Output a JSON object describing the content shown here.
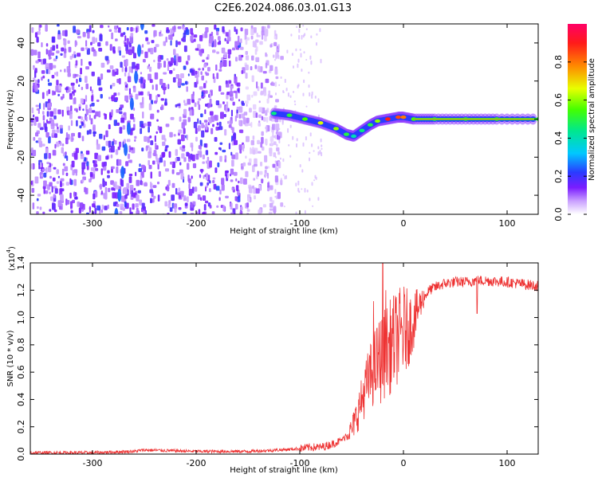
{
  "page_title": "C2E6.2024.086.03.01.G13",
  "chart_data": [
    {
      "type": "heatmap",
      "name": "spectrogram",
      "xlabel": "Height of straight line (km)",
      "ylabel": "Frequency (Hz)",
      "xlim": [
        -360,
        130
      ],
      "ylim": [
        -50,
        50
      ],
      "xticks": [
        -300,
        -200,
        -100,
        0,
        100
      ],
      "yticks": [
        -40,
        -20,
        0,
        20,
        40
      ],
      "grid": false,
      "colorbar": {
        "label": "Normalized spectral amplitude",
        "range": [
          0,
          1
        ],
        "ticks": [
          0.0,
          0.2,
          0.4,
          0.6,
          0.8
        ]
      },
      "signal_track": {
        "x": [
          -125,
          -110,
          -95,
          -80,
          -65,
          -55,
          -48,
          -40,
          -32,
          -25,
          -15,
          -5,
          0,
          10,
          30,
          60,
          90,
          130
        ],
        "frequency": [
          3,
          2,
          0,
          -2,
          -5,
          -8,
          -9,
          -6,
          -3,
          -1,
          0,
          1,
          1,
          0,
          0,
          0,
          0,
          0
        ],
        "amplitude": [
          0.45,
          0.5,
          0.55,
          0.65,
          0.6,
          0.5,
          0.4,
          0.45,
          0.5,
          0.6,
          0.9,
          0.85,
          0.8,
          0.55,
          0.5,
          0.5,
          0.55,
          0.5
        ]
      },
      "dispersed_track": {
        "x": [
          -277,
          -274,
          -271,
          -268,
          -265,
          -262,
          -258,
          -255,
          -252
        ],
        "frequency": [
          -50,
          -40,
          -28,
          -16,
          -5,
          8,
          22,
          36,
          50
        ]
      }
    },
    {
      "type": "line",
      "name": "snr",
      "xlabel": "Height of straight line (km)",
      "ylabel": "SNR (10 * v/v)",
      "scale_label": "(x10",
      "scale_exp": "4",
      "scale_close": ")",
      "xlim": [
        -360,
        130
      ],
      "ylim": [
        0,
        1.4
      ],
      "xticks": [
        -300,
        -200,
        -100,
        0,
        100
      ],
      "yticks": [
        0.0,
        0.2,
        0.4,
        0.6,
        0.8,
        1.0,
        1.2,
        1.4
      ],
      "color": "#ee3333",
      "envelope": {
        "x": [
          -360,
          -300,
          -260,
          -250,
          -200,
          -150,
          -120,
          -100,
          -90,
          -80,
          -70,
          -60,
          -50,
          -45,
          -40,
          -35,
          -30,
          -25,
          -20,
          -15,
          -10,
          -5,
          0,
          5,
          10,
          15,
          20,
          25,
          30,
          40,
          50,
          60,
          70,
          80,
          100,
          110,
          120,
          130
        ],
        "y": [
          0.01,
          0.01,
          0.02,
          0.03,
          0.02,
          0.02,
          0.03,
          0.04,
          0.05,
          0.05,
          0.07,
          0.1,
          0.18,
          0.28,
          0.4,
          0.52,
          0.6,
          0.67,
          0.72,
          0.76,
          0.82,
          0.86,
          0.9,
          0.92,
          0.98,
          1.08,
          1.15,
          1.2,
          1.22,
          1.25,
          1.26,
          1.26,
          1.27,
          1.27,
          1.26,
          1.25,
          1.24,
          1.23
        ]
      },
      "spikes": [
        {
          "x": -20,
          "y": 1.4
        },
        {
          "x": -29,
          "y": 1.12
        },
        {
          "x": -17,
          "y": 1.2
        },
        {
          "x": 71,
          "y": 1.03
        }
      ]
    }
  ]
}
